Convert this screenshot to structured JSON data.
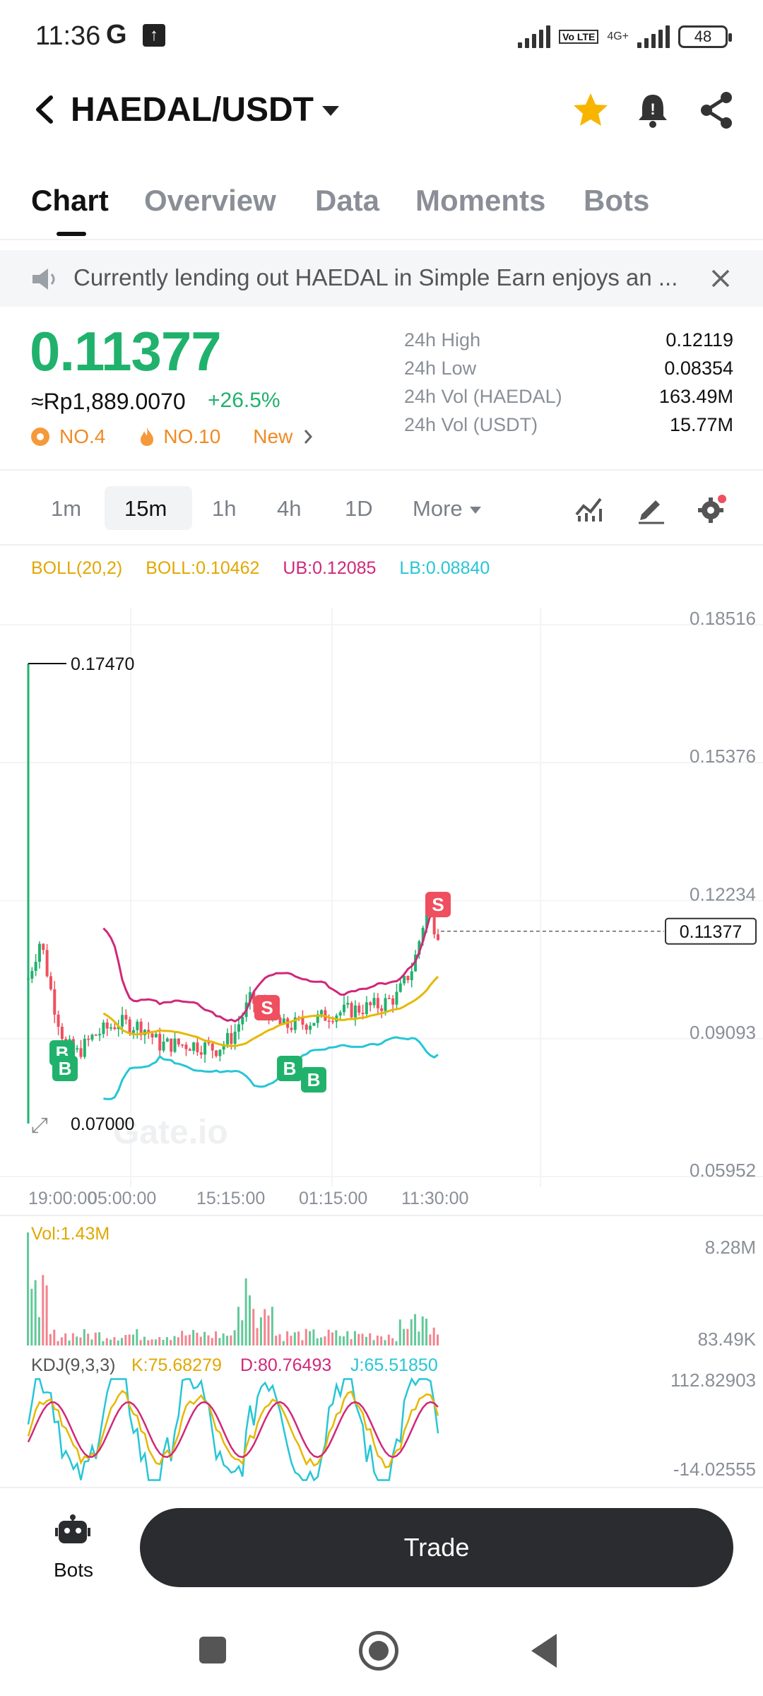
{
  "status_bar": {
    "time": "11:36",
    "g_icon": "G",
    "volte": "Vo LTE",
    "network": "4G+",
    "battery": "48"
  },
  "header": {
    "pair": "HAEDAL/USDT"
  },
  "tabs": [
    {
      "label": "Chart",
      "active": true
    },
    {
      "label": "Overview",
      "active": false
    },
    {
      "label": "Data",
      "active": false
    },
    {
      "label": "Moments",
      "active": false
    },
    {
      "label": "Bots",
      "active": false
    }
  ],
  "announcement": {
    "text": "Currently lending out HAEDAL in Simple Earn enjoys an ..."
  },
  "price": {
    "last": "0.11377",
    "fiat": "≈Rp1,889.0070",
    "change": "+26.5%",
    "rank_1": "NO.4",
    "rank_2": "NO.10",
    "new_label": "New"
  },
  "stats": [
    {
      "label": "24h High",
      "value": "0.12119"
    },
    {
      "label": "24h Low",
      "value": "0.08354"
    },
    {
      "label": "24h Vol (HAEDAL)",
      "value": "163.49M"
    },
    {
      "label": "24h Vol (USDT)",
      "value": "15.77M"
    }
  ],
  "intervals": [
    {
      "label": "1m",
      "active": false
    },
    {
      "label": "15m",
      "active": true
    },
    {
      "label": "1h",
      "active": false
    },
    {
      "label": "4h",
      "active": false
    },
    {
      "label": "1D",
      "active": false
    },
    {
      "label": "More",
      "active": false
    }
  ],
  "boll_legend": {
    "name": "BOLL(20,2)",
    "boll": "BOLL:0.10462",
    "ub": "UB:0.12085",
    "lb": "LB:0.08840"
  },
  "chart_data": {
    "type": "candlestick",
    "price_axis_labels": [
      "0.18516",
      "0.15376",
      "0.12234",
      "0.09093",
      "0.05952"
    ],
    "ylim": [
      0.05952,
      0.18516
    ],
    "max_marker": "0.17470",
    "min_marker": "0.07000",
    "last_price_label": "0.11377",
    "time_labels": [
      "19:00:00",
      "05:00:00",
      "15:15:00",
      "01:15:00",
      "11:30:00"
    ],
    "watermark": "Gate.io",
    "trade_markers": [
      {
        "side": "B",
        "label": "B"
      },
      {
        "side": "B",
        "label": "B"
      },
      {
        "side": "S",
        "label": "S"
      },
      {
        "side": "B",
        "label": "B"
      },
      {
        "side": "B",
        "label": "B"
      },
      {
        "side": "S",
        "label": "S"
      }
    ],
    "colors": {
      "up": "#20b26c",
      "down": "#ef4f5e",
      "boll": "#e6b800",
      "ub": "#d0287a",
      "lb": "#26c6d6"
    },
    "volume": {
      "legend": "Vol:1.43M",
      "axis_labels": [
        "8.28M",
        "83.49K"
      ]
    },
    "kdj": {
      "name": "KDJ(9,3,3)",
      "k": "K:75.68279",
      "d": "D:80.76493",
      "j": "J:65.51850",
      "axis_labels": [
        "112.82903",
        "-14.02555"
      ]
    }
  },
  "bottom_bar": {
    "bots_label": "Bots",
    "trade_label": "Trade"
  }
}
